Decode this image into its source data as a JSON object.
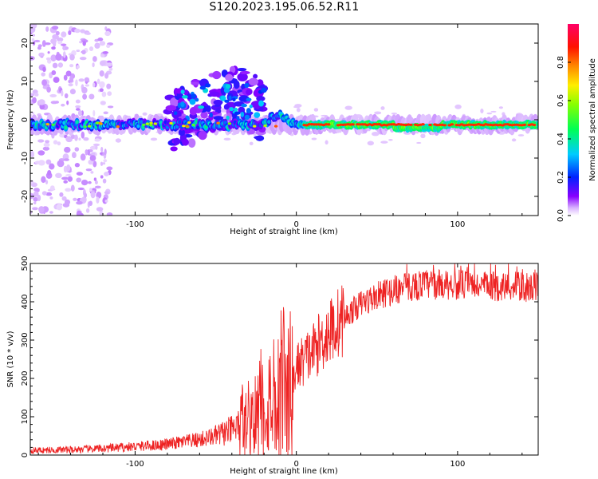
{
  "figure_title": "S120.2023.195.06.52.R11",
  "colors": {
    "snr_line": "#ee2222",
    "axis": "#000000",
    "ridge": "#ee1144",
    "background": "#ffffff"
  },
  "chart_data": [
    {
      "type": "heatmap",
      "title": "",
      "xlabel": "Height of straight line (km)",
      "ylabel": "Frequency (Hz)",
      "xlim": [
        -165,
        150
      ],
      "ylim": [
        -25,
        25
      ],
      "x_ticks": [
        -100,
        0,
        100
      ],
      "y_ticks": [
        -20,
        -10,
        0,
        10,
        20
      ],
      "colorbar": {
        "label": "Normalized spectral amplitude",
        "range": [
          0,
          1
        ],
        "ticks": [
          "0.0",
          "0.2",
          "0.4",
          "0.6",
          "0.8"
        ],
        "colormap": "gist_rainbow_r (violet → blue → cyan → green → yellow → red → magenta)"
      },
      "features": {
        "main_ridge_frequency_hz": -1.3,
        "scatter_burst_x_range_km": [
          -80,
          -20
        ],
        "scatter_burst_freq_range_hz": [
          -9,
          14
        ],
        "noise_band_x_range_km": [
          -165,
          -115
        ],
        "high_amplitude_ridge_x_range_km": [
          5,
          148
        ]
      }
    },
    {
      "type": "line",
      "title": "",
      "xlabel": "Height of straight line (km)",
      "ylabel": "SNR (10 * v/v)",
      "xlim": [
        -165,
        150
      ],
      "ylim": [
        0,
        500
      ],
      "x_ticks": [
        -100,
        0,
        100
      ],
      "y_ticks": [
        0,
        100,
        200,
        300,
        400,
        500
      ],
      "series": [
        {
          "name": "SNR",
          "trend_x": [
            -165,
            -140,
            -120,
            -100,
            -80,
            -60,
            -50,
            -40,
            -30,
            -20,
            -10,
            -2,
            0,
            10,
            20,
            30,
            40,
            50,
            60,
            70,
            80,
            100,
            120,
            150
          ],
          "trend_y": [
            12,
            14,
            17,
            22,
            28,
            40,
            50,
            65,
            90,
            130,
            160,
            185,
            230,
            270,
            320,
            360,
            395,
            415,
            430,
            440,
            445,
            445,
            440,
            438
          ]
        }
      ]
    }
  ]
}
